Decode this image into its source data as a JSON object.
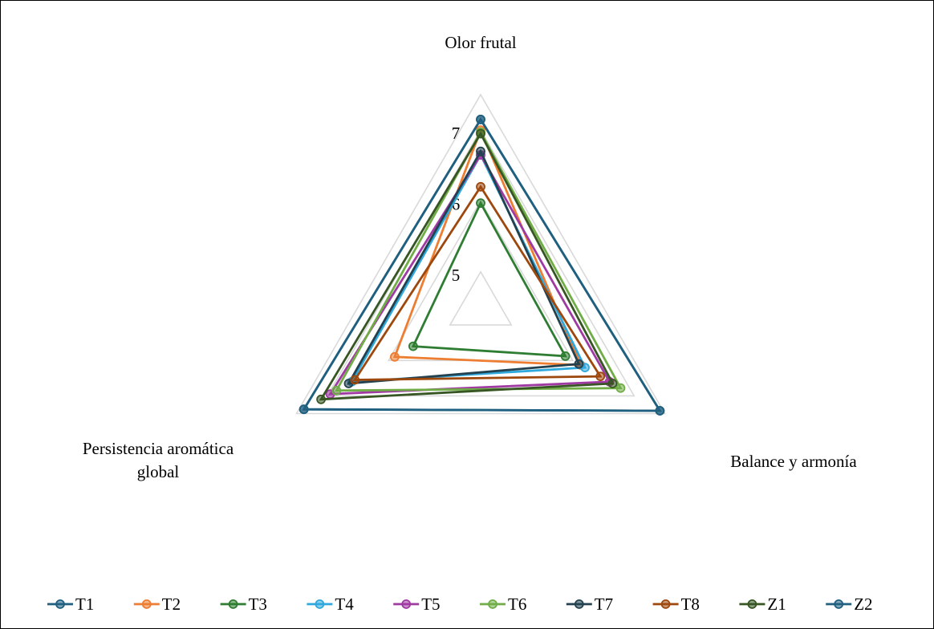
{
  "chart_data": {
    "type": "radar",
    "axes": [
      "Olor frutal",
      "Balance y armonía",
      "Persistencia aromática global"
    ],
    "axis_label_lines": [
      [
        "Olor frutal"
      ],
      [
        "Balance y armonía"
      ],
      [
        "Persistencia aromática",
        "global"
      ]
    ],
    "ticks": [
      "5",
      "6",
      "7"
    ],
    "range": [
      4.5,
      7.5
    ],
    "grid": true,
    "legend_position": "bottom",
    "series": [
      {
        "name": "T1",
        "color": "#1F5F7F",
        "values": [
          7.15,
          7.42,
          7.38
        ]
      },
      {
        "name": "T2",
        "color": "#ED7D31",
        "values": [
          7.0,
          6.13,
          5.9
        ]
      },
      {
        "name": "T3",
        "color": "#2E7D32",
        "values": [
          5.97,
          5.88,
          5.6
        ]
      },
      {
        "name": "T4",
        "color": "#2FA8DC",
        "values": [
          6.65,
          6.2,
          6.6
        ]
      },
      {
        "name": "T5",
        "color": "#A03AA3",
        "values": [
          6.65,
          6.6,
          6.95
        ]
      },
      {
        "name": "T6",
        "color": "#70AD47",
        "values": [
          6.97,
          6.78,
          6.85
        ]
      },
      {
        "name": "T7",
        "color": "#23414F",
        "values": [
          6.7,
          6.1,
          6.65
        ]
      },
      {
        "name": "T8",
        "color": "#9E480E",
        "values": [
          6.2,
          6.45,
          6.55
        ]
      },
      {
        "name": "Z1",
        "color": "#375623",
        "values": [
          6.95,
          6.65,
          7.1
        ]
      },
      {
        "name": "Z2",
        "color": "#1F5F7F",
        "values": [
          7.15,
          7.42,
          7.38
        ]
      }
    ]
  }
}
